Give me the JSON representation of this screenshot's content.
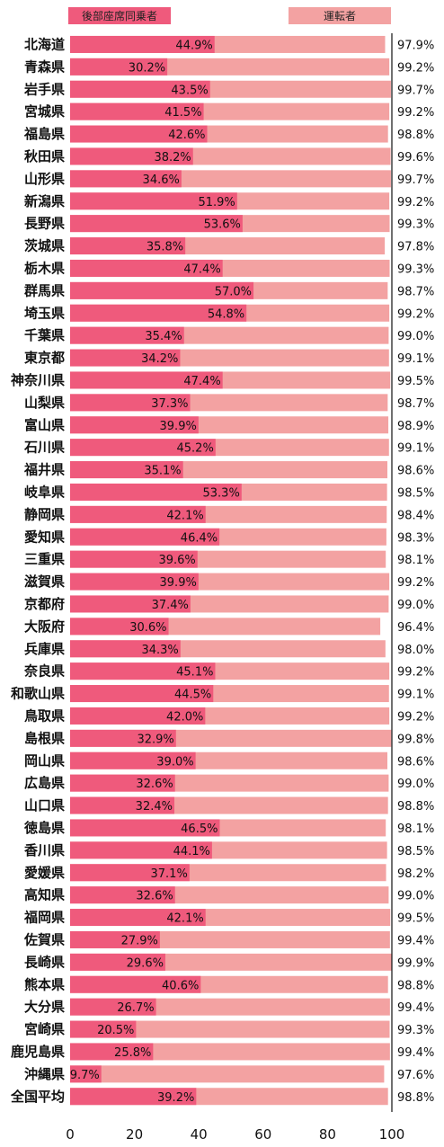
{
  "chart_data": {
    "type": "bar",
    "orientation": "horizontal",
    "series": [
      {
        "name": "後部座席同乗者",
        "color": "#ef5a7c",
        "values": [
          44.9,
          30.2,
          43.5,
          41.5,
          42.6,
          38.2,
          34.6,
          51.9,
          53.6,
          35.8,
          47.4,
          57.0,
          54.8,
          35.4,
          34.2,
          47.4,
          37.3,
          39.9,
          45.2,
          35.1,
          53.3,
          42.1,
          46.4,
          39.6,
          39.9,
          37.4,
          30.6,
          34.3,
          45.1,
          44.5,
          42.0,
          32.9,
          39.0,
          32.6,
          32.4,
          46.5,
          44.1,
          37.1,
          32.6,
          42.1,
          27.9,
          29.6,
          40.6,
          26.7,
          20.5,
          25.8,
          9.7,
          39.2
        ]
      },
      {
        "name": "運転者",
        "color": "#f3a2a2",
        "values": [
          97.9,
          99.2,
          99.7,
          99.2,
          98.8,
          99.6,
          99.7,
          99.2,
          99.3,
          97.8,
          99.3,
          98.7,
          99.2,
          99.0,
          99.1,
          99.5,
          98.7,
          98.9,
          99.1,
          98.6,
          98.5,
          98.4,
          98.3,
          98.1,
          99.2,
          99.0,
          96.4,
          98.0,
          99.2,
          99.1,
          99.2,
          99.8,
          98.6,
          99.0,
          98.8,
          98.1,
          98.5,
          98.2,
          99.0,
          99.5,
          99.4,
          99.9,
          98.8,
          99.4,
          99.3,
          99.4,
          97.6,
          98.8
        ]
      }
    ],
    "categories": [
      "北海道",
      "青森県",
      "岩手県",
      "宮城県",
      "福島県",
      "秋田県",
      "山形県",
      "新潟県",
      "長野県",
      "茨城県",
      "栃木県",
      "群馬県",
      "埼玉県",
      "千葉県",
      "東京都",
      "神奈川県",
      "山梨県",
      "富山県",
      "石川県",
      "福井県",
      "岐阜県",
      "静岡県",
      "愛知県",
      "三重県",
      "滋賀県",
      "京都府",
      "大阪府",
      "兵庫県",
      "奈良県",
      "和歌山県",
      "鳥取県",
      "島根県",
      "岡山県",
      "広島県",
      "山口県",
      "徳島県",
      "香川県",
      "愛媛県",
      "高知県",
      "福岡県",
      "佐賀県",
      "長崎県",
      "熊本県",
      "大分県",
      "宮崎県",
      "鹿児島県",
      "沖縄県",
      "全国平均"
    ],
    "xlim": [
      0,
      100
    ],
    "xticks": [
      "0",
      "20",
      "40",
      "60",
      "80",
      "100"
    ],
    "title": "",
    "xlabel": "",
    "ylabel": "",
    "legend_position": "top",
    "grid": false
  }
}
